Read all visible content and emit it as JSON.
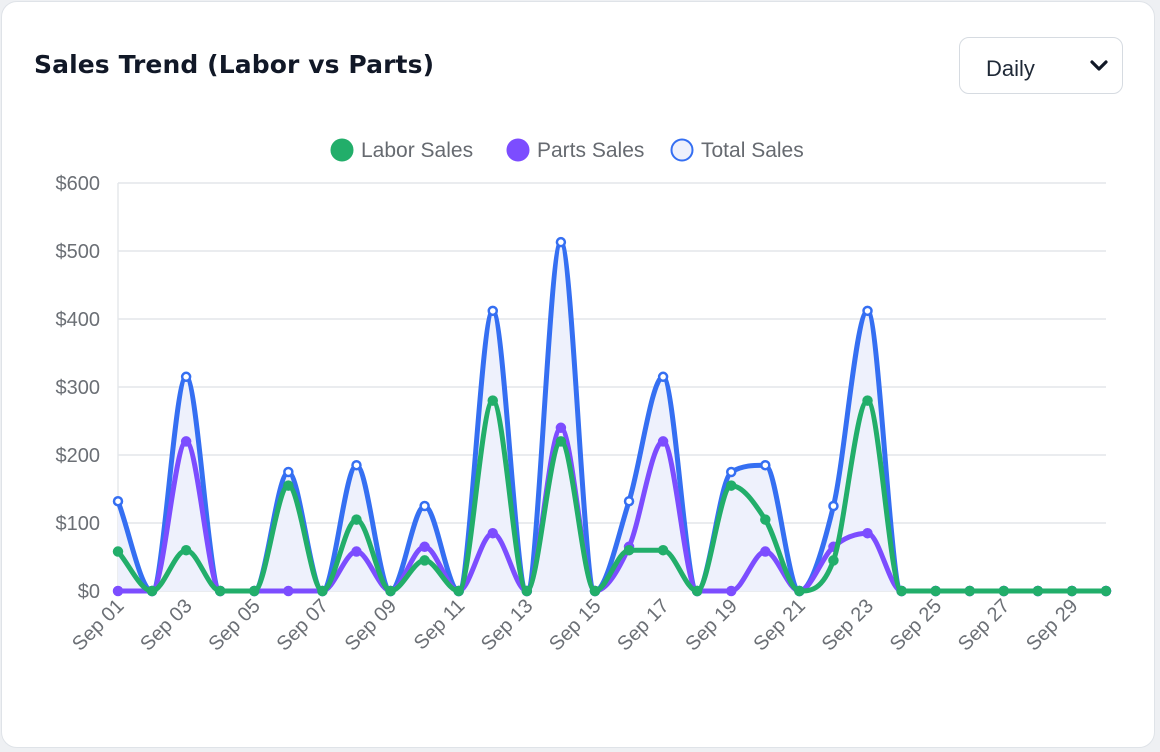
{
  "card": {
    "title": "Sales Trend (Labor vs Parts)",
    "period_select": {
      "selected": "Daily",
      "options": [
        "Daily"
      ]
    }
  },
  "chart_data": {
    "type": "line",
    "title": "Sales Trend (Labor vs Parts)",
    "xlabel": "",
    "ylabel": "",
    "x": [
      "Sep 01",
      "Sep 02",
      "Sep 03",
      "Sep 04",
      "Sep 05",
      "Sep 06",
      "Sep 07",
      "Sep 08",
      "Sep 09",
      "Sep 10",
      "Sep 11",
      "Sep 12",
      "Sep 13",
      "Sep 14",
      "Sep 15",
      "Sep 16",
      "Sep 17",
      "Sep 18",
      "Sep 19",
      "Sep 20",
      "Sep 21",
      "Sep 22",
      "Sep 23",
      "Sep 24",
      "Sep 25",
      "Sep 26",
      "Sep 27",
      "Sep 28",
      "Sep 29",
      "Sep 30"
    ],
    "x_tick_labels": [
      "Sep 01",
      "Sep 03",
      "Sep 05",
      "Sep 07",
      "Sep 09",
      "Sep 11",
      "Sep 13",
      "Sep 15",
      "Sep 17",
      "Sep 19",
      "Sep 21",
      "Sep 23",
      "Sep 25",
      "Sep 27",
      "Sep 29"
    ],
    "ylim": [
      0,
      600
    ],
    "y_ticks": [
      0,
      100,
      200,
      300,
      400,
      500,
      600
    ],
    "y_tick_labels": [
      "$0",
      "$100",
      "$200",
      "$300",
      "$400",
      "$500",
      "$600"
    ],
    "grid": true,
    "legend_position": "top-center",
    "series": [
      {
        "name": "Labor Sales",
        "color": "#22ae6a",
        "fill": false,
        "values": [
          58,
          0,
          60,
          0,
          0,
          155,
          0,
          105,
          0,
          45,
          0,
          280,
          0,
          220,
          0,
          60,
          60,
          0,
          155,
          105,
          0,
          45,
          280,
          0,
          0,
          0,
          0,
          0,
          0,
          0
        ]
      },
      {
        "name": "Parts Sales",
        "color": "#7c4dff",
        "fill": false,
        "values": [
          0,
          0,
          220,
          0,
          0,
          0,
          0,
          58,
          0,
          65,
          0,
          85,
          0,
          240,
          0,
          65,
          220,
          0,
          0,
          58,
          0,
          65,
          85,
          0,
          0,
          0,
          0,
          0,
          0,
          0
        ]
      },
      {
        "name": "Total Sales",
        "color": "#356ff2",
        "fill": true,
        "fill_color": "#eef1fc",
        "values": [
          132,
          0,
          315,
          0,
          0,
          175,
          0,
          185,
          0,
          125,
          0,
          412,
          0,
          513,
          0,
          132,
          315,
          0,
          175,
          185,
          0,
          125,
          412,
          0,
          0,
          0,
          0,
          0,
          0,
          0
        ]
      }
    ]
  }
}
